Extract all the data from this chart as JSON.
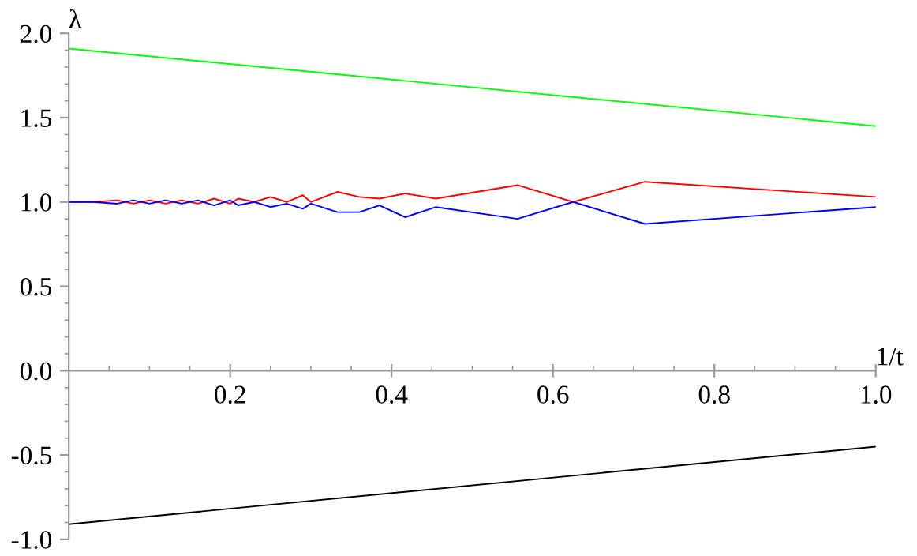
{
  "chart_data": {
    "type": "line",
    "xlabel": "1/t",
    "ylabel": "λ",
    "xlim": [
      0,
      1
    ],
    "ylim": [
      -1,
      2
    ],
    "xticks": [
      0.2,
      0.4,
      0.6,
      0.8,
      {
        "value": 1,
        "label": "1.0"
      }
    ],
    "yticks": [
      {
        "value": -1,
        "label": "-1.0"
      },
      -0.5,
      {
        "value": 0,
        "label": "0.0"
      },
      0.5,
      {
        "value": 1,
        "label": "1.0"
      },
      1.5,
      {
        "value": 2,
        "label": "2.0"
      }
    ],
    "series": [
      {
        "color": "#00ff00",
        "x": [
          0,
          1
        ],
        "values": [
          1.91,
          1.45
        ]
      },
      {
        "color": "#000000",
        "x": [
          0,
          1
        ],
        "values": [
          -0.91,
          -0.45
        ]
      },
      {
        "color": "#ff0000",
        "x": [
          0,
          0.03,
          0.06,
          0.08,
          0.1,
          0.12,
          0.14,
          0.16,
          0.18,
          0.2,
          0.21,
          0.23,
          0.25,
          0.27,
          0.29,
          0.3,
          0.333,
          0.36,
          0.385,
          0.417,
          0.455,
          0.556,
          0.625,
          0.714,
          1.0
        ],
        "values": [
          1.0,
          1.0,
          1.01,
          0.99,
          1.01,
          0.99,
          1.01,
          0.99,
          1.02,
          0.99,
          1.02,
          1.0,
          1.03,
          1.0,
          1.04,
          1.0,
          1.06,
          1.03,
          1.02,
          1.05,
          1.02,
          1.1,
          1.0,
          1.12,
          1.03
        ]
      },
      {
        "color": "#0000ff",
        "x": [
          0,
          0.03,
          0.06,
          0.08,
          0.1,
          0.12,
          0.14,
          0.16,
          0.18,
          0.2,
          0.21,
          0.23,
          0.25,
          0.27,
          0.29,
          0.3,
          0.333,
          0.36,
          0.385,
          0.417,
          0.455,
          0.556,
          0.625,
          0.714,
          1.0
        ],
        "values": [
          1.0,
          1.0,
          0.99,
          1.01,
          0.99,
          1.01,
          0.99,
          1.01,
          0.98,
          1.01,
          0.98,
          1.0,
          0.97,
          0.99,
          0.96,
          0.99,
          0.94,
          0.94,
          0.98,
          0.91,
          0.97,
          0.9,
          1.0,
          0.87,
          0.97
        ]
      }
    ]
  }
}
